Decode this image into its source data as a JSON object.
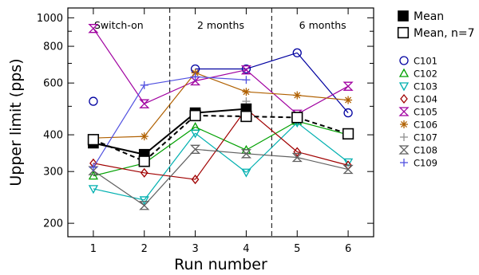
{
  "chart_data": {
    "type": "line",
    "xlabel": "Run number",
    "ylabel": "Upper limit (pps)",
    "x": [
      1,
      2,
      3,
      4,
      5,
      6
    ],
    "xlim": [
      0.5,
      6.5
    ],
    "ylim": [
      180,
      1080
    ],
    "yscale": "log",
    "yticks_major": [
      200,
      300,
      400,
      600,
      800,
      1000
    ],
    "yticks_minor": [
      500,
      700,
      900
    ],
    "period_labels": [
      {
        "label": "Switch-on",
        "x": 1.5
      },
      {
        "label": "2 months",
        "x": 3.5
      },
      {
        "label": "6 months",
        "x": 5.5
      }
    ],
    "dividers_x": [
      2.5,
      4.5
    ],
    "grid": false,
    "legend_position": "right",
    "series": [
      {
        "name": "C101",
        "color": "#0000a0",
        "marker": "circle",
        "values": [
          520,
          null,
          670,
          670,
          760,
          475
        ]
      },
      {
        "name": "C102",
        "color": "#00a000",
        "marker": "triangle-up",
        "values": [
          290,
          320,
          425,
          355,
          445,
          400
        ]
      },
      {
        "name": "C103",
        "color": "#00b0b0",
        "marker": "triangle-down",
        "values": [
          262,
          240,
          405,
          298,
          440,
          323
        ]
      },
      {
        "name": "C104",
        "color": "#a00000",
        "marker": "diamond",
        "values": [
          320,
          297,
          282,
          490,
          350,
          315
        ]
      },
      {
        "name": "C105",
        "color": "#a000a0",
        "marker": "hourglass",
        "values": [
          920,
          510,
          610,
          665,
          470,
          585
        ]
      },
      {
        "name": "C106",
        "color": "#b06000",
        "marker": "asterisk",
        "values": [
          390,
          395,
          650,
          560,
          545,
          525
        ]
      },
      {
        "name": "C107",
        "color": "#909090",
        "marker": "plus",
        "values": [
          null,
          null,
          null,
          520,
          null,
          null
        ]
      },
      {
        "name": "C108",
        "color": "#606060",
        "marker": "hourglass",
        "values": [
          302,
          230,
          357,
          345,
          335,
          305
        ]
      },
      {
        "name": "C109",
        "color": "#5050e0",
        "marker": "plus",
        "values": [
          310,
          590,
          630,
          615,
          null,
          null
        ]
      },
      {
        "name": "Mean",
        "color": "#000000",
        "marker": "square-filled",
        "values": [
          375,
          343,
          475,
          490,
          null,
          null
        ]
      },
      {
        "name": "Mean, n=7",
        "color": "#000000",
        "marker": "square-open",
        "values": [
          385,
          325,
          465,
          462,
          458,
          403
        ]
      }
    ]
  }
}
